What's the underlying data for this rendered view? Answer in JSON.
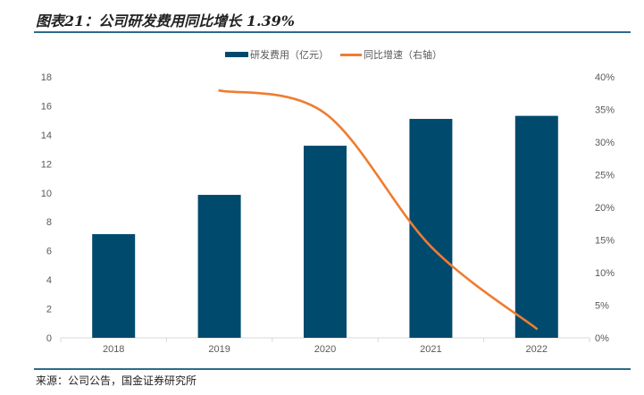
{
  "title": "图表21：公司研发费用同比增长 1.39%",
  "source": "来源：公司公告，国金证券研究所",
  "colors": {
    "bar": "#004a6e",
    "line": "#ee7d31",
    "rule": "#2e6a8a",
    "axis": "#d9d9d9"
  },
  "chart_data": {
    "type": "bar+line",
    "categories": [
      "2018",
      "2019",
      "2020",
      "2021",
      "2022"
    ],
    "series": [
      {
        "name": "研发费用（亿元）",
        "type": "bar",
        "axis": "left",
        "values": [
          7.15,
          9.86,
          13.25,
          15.1,
          15.31
        ]
      },
      {
        "name": "同比增速（右轴）",
        "type": "line",
        "axis": "right",
        "values": [
          null,
          37.9,
          34.4,
          14.0,
          1.39
        ]
      }
    ],
    "y_left": {
      "min": 0,
      "max": 18,
      "ticks": [
        "0",
        "2",
        "4",
        "6",
        "8",
        "10",
        "12",
        "14",
        "16",
        "18"
      ]
    },
    "y_right": {
      "min": 0,
      "max": 40,
      "ticks": [
        "0%",
        "5%",
        "10%",
        "15%",
        "20%",
        "25%",
        "30%",
        "35%",
        "40%"
      ]
    },
    "legend": {
      "placement": "top",
      "items": [
        "研发费用（亿元）",
        "同比增速（右轴）"
      ]
    },
    "grid": false
  }
}
